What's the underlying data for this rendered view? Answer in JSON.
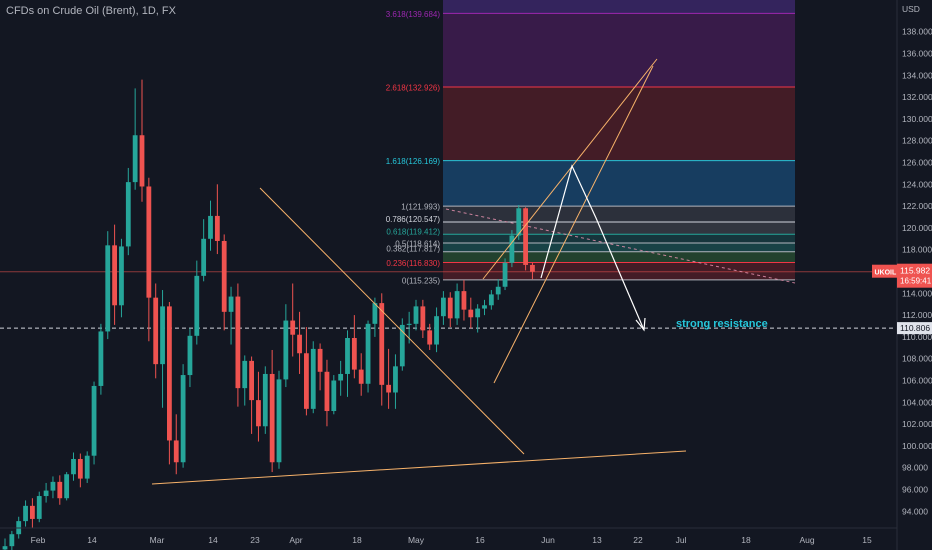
{
  "header": {
    "symbol_title": "CFDs on Crude Oil (Brent), 1D, FX"
  },
  "price_axis": {
    "currency_label": "USD",
    "ticks": [
      "94.000",
      "96.000",
      "98.000",
      "100.000",
      "102.000",
      "104.000",
      "106.000",
      "108.000",
      "110.000",
      "112.000",
      "114.000",
      "116.000",
      "118.000",
      "120.000",
      "122.000",
      "124.000",
      "126.000",
      "128.000",
      "130.000",
      "132.000",
      "134.000",
      "136.000",
      "138.000"
    ]
  },
  "time_axis": {
    "labels": [
      "Feb",
      "14",
      "Mar",
      "14",
      "23",
      "Apr",
      "18",
      "May",
      "16",
      "Jun",
      "13",
      "22",
      "Jul",
      "18",
      "Aug",
      "15"
    ]
  },
  "badges": {
    "symbol": "UKOIL",
    "last_price": "115.982",
    "countdown": "16:59:41",
    "horizontal_line_price": "110.806"
  },
  "colors": {
    "background": "#131722",
    "up_candle": "#26a69a",
    "down_candle": "#ef5350",
    "trendline": "#f7b26a",
    "projection_arrow": "#ffffff",
    "last_price_line": "#ef5350",
    "annotation_text": "#26c6da"
  },
  "annotations": {
    "strong_resistance": "strong resistance"
  },
  "fibonacci": [
    {
      "label": "3.618(139.684)",
      "price": 139.684,
      "color": "#9c27b0"
    },
    {
      "label": "2.618(132.926)",
      "price": 132.926,
      "color": "#f23645"
    },
    {
      "label": "1.618(126.169)",
      "price": 126.169,
      "color": "#26c6da"
    },
    {
      "label": "1(121.993)",
      "price": 121.993,
      "color": "#b2b5be"
    },
    {
      "label": "0.786(120.547)",
      "price": 120.547,
      "color": "#d1d4dc"
    },
    {
      "label": "0.618(119.412)",
      "price": 119.412,
      "color": "#26a69a"
    },
    {
      "label": "0.5(118.614)",
      "price": 118.614,
      "color": "#b2b5be"
    },
    {
      "label": "0.382(117.817)",
      "price": 117.817,
      "color": "#b2b5be"
    },
    {
      "label": "0.236(116.830)",
      "price": 116.83,
      "color": "#f23645"
    },
    {
      "label": "0(115.235)",
      "price": 115.235,
      "color": "#b2b5be"
    }
  ],
  "chart_data": {
    "type": "candlestick",
    "title": "CFDs on Crude Oil (Brent), 1D, FX",
    "ylabel": "USD",
    "ylim": [
      92.5,
      139.9
    ],
    "candles": [
      [
        90.5,
        91.5,
        89.5,
        90.8
      ],
      [
        90.8,
        92.2,
        90,
        91.9
      ],
      [
        91.9,
        93.5,
        91.5,
        93.1
      ],
      [
        93.1,
        95,
        92.6,
        94.5
      ],
      [
        94.5,
        95.2,
        92.5,
        93.3
      ],
      [
        93.3,
        95.8,
        93,
        95.4
      ],
      [
        95.4,
        96.6,
        94.8,
        95.9
      ],
      [
        95.9,
        97.2,
        95.2,
        96.7
      ],
      [
        96.7,
        97.3,
        94.6,
        95.2
      ],
      [
        95.2,
        97.6,
        95,
        97.4
      ],
      [
        97.4,
        99.4,
        96.8,
        98.8
      ],
      [
        98.8,
        99.3,
        96.2,
        97
      ],
      [
        97,
        99.5,
        96.6,
        99.1
      ],
      [
        99.1,
        105.9,
        98.3,
        105.5
      ],
      [
        105.5,
        111.2,
        104.7,
        110.5
      ],
      [
        110.5,
        119.7,
        109.8,
        118.4
      ],
      [
        118.4,
        120.3,
        111.1,
        112.9
      ],
      [
        112.9,
        119,
        111.8,
        118.3
      ],
      [
        118.3,
        125.5,
        117.5,
        124.2
      ],
      [
        124.2,
        132.8,
        123.5,
        128.5
      ],
      [
        128.5,
        133.6,
        122.4,
        123.8
      ],
      [
        123.8,
        124.6,
        109.6,
        113.6
      ],
      [
        113.6,
        114.9,
        106.2,
        107.5
      ],
      [
        107.5,
        114.3,
        103.5,
        112.8
      ],
      [
        112.8,
        113.2,
        98.3,
        100.5
      ],
      [
        100.5,
        102.9,
        97.4,
        98.5
      ],
      [
        98.5,
        107.5,
        98,
        106.5
      ],
      [
        106.5,
        110.8,
        105.4,
        110.1
      ],
      [
        110.1,
        117,
        109.3,
        115.6
      ],
      [
        115.6,
        120.8,
        115.1,
        119
      ],
      [
        119,
        122.5,
        117.9,
        121.1
      ],
      [
        121.1,
        124,
        117.6,
        118.8
      ],
      [
        118.8,
        119.4,
        110.6,
        112.3
      ],
      [
        112.3,
        114.6,
        109.3,
        113.7
      ],
      [
        113.7,
        114.9,
        103.6,
        105.3
      ],
      [
        105.3,
        108.3,
        103.7,
        107.8
      ],
      [
        107.8,
        108.2,
        101.1,
        104.2
      ],
      [
        104.2,
        106.8,
        100.4,
        101.8
      ],
      [
        101.8,
        107.3,
        101.1,
        106.6
      ],
      [
        106.6,
        108.8,
        97.6,
        98.5
      ],
      [
        98.5,
        106.9,
        97.9,
        106.1
      ],
      [
        106.1,
        113,
        105.4,
        111.5
      ],
      [
        111.5,
        114.9,
        108.2,
        110.2
      ],
      [
        110.2,
        112.3,
        106.6,
        108.5
      ],
      [
        108.5,
        110.9,
        102.8,
        103.4
      ],
      [
        103.4,
        109.6,
        103,
        108.9
      ],
      [
        108.9,
        109.4,
        105.1,
        106.8
      ],
      [
        106.8,
        107.9,
        101.8,
        103.2
      ],
      [
        103.2,
        106.5,
        102.9,
        106
      ],
      [
        106,
        107.8,
        104.6,
        106.6
      ],
      [
        106.6,
        110.6,
        104.5,
        109.9
      ],
      [
        109.9,
        112,
        106.2,
        107
      ],
      [
        107,
        108.5,
        104.6,
        105.7
      ],
      [
        105.7,
        111.5,
        104.9,
        111.2
      ],
      [
        111.2,
        113.6,
        110,
        113.1
      ],
      [
        113.1,
        114,
        103.7,
        105.6
      ],
      [
        105.6,
        108.9,
        103.4,
        104.9
      ],
      [
        104.9,
        108.4,
        103.4,
        107.3
      ],
      [
        107.3,
        111.7,
        106.9,
        111.1
      ],
      [
        111.1,
        112.3,
        109.4,
        111.2
      ],
      [
        111.2,
        113.4,
        110.6,
        112.8
      ],
      [
        112.8,
        113.4,
        109.9,
        110.6
      ],
      [
        110.6,
        111.2,
        108.8,
        109.3
      ],
      [
        109.3,
        112.7,
        108.6,
        111.9
      ],
      [
        111.9,
        114.2,
        111.1,
        113.6
      ],
      [
        113.6,
        114.1,
        110.9,
        111.7
      ],
      [
        111.7,
        114.9,
        111.1,
        114.2
      ],
      [
        114.2,
        115.2,
        111.5,
        112.5
      ],
      [
        112.5,
        113.6,
        110.8,
        111.8
      ],
      [
        111.8,
        113,
        110.4,
        112.6
      ],
      [
        112.6,
        113.4,
        112,
        112.9
      ],
      [
        112.9,
        114.3,
        112.5,
        113.9
      ],
      [
        113.9,
        115.3,
        113.4,
        114.6
      ],
      [
        114.6,
        117.2,
        114.3,
        116.8
      ],
      [
        116.8,
        119.8,
        116.4,
        119.3
      ],
      [
        119.3,
        122.1,
        118.9,
        121.8
      ],
      [
        121.8,
        121.9,
        116.1,
        116.6
      ],
      [
        116.6,
        116.8,
        115.3,
        115.98
      ]
    ],
    "candle_fields": [
      "open",
      "high",
      "low",
      "close"
    ]
  }
}
